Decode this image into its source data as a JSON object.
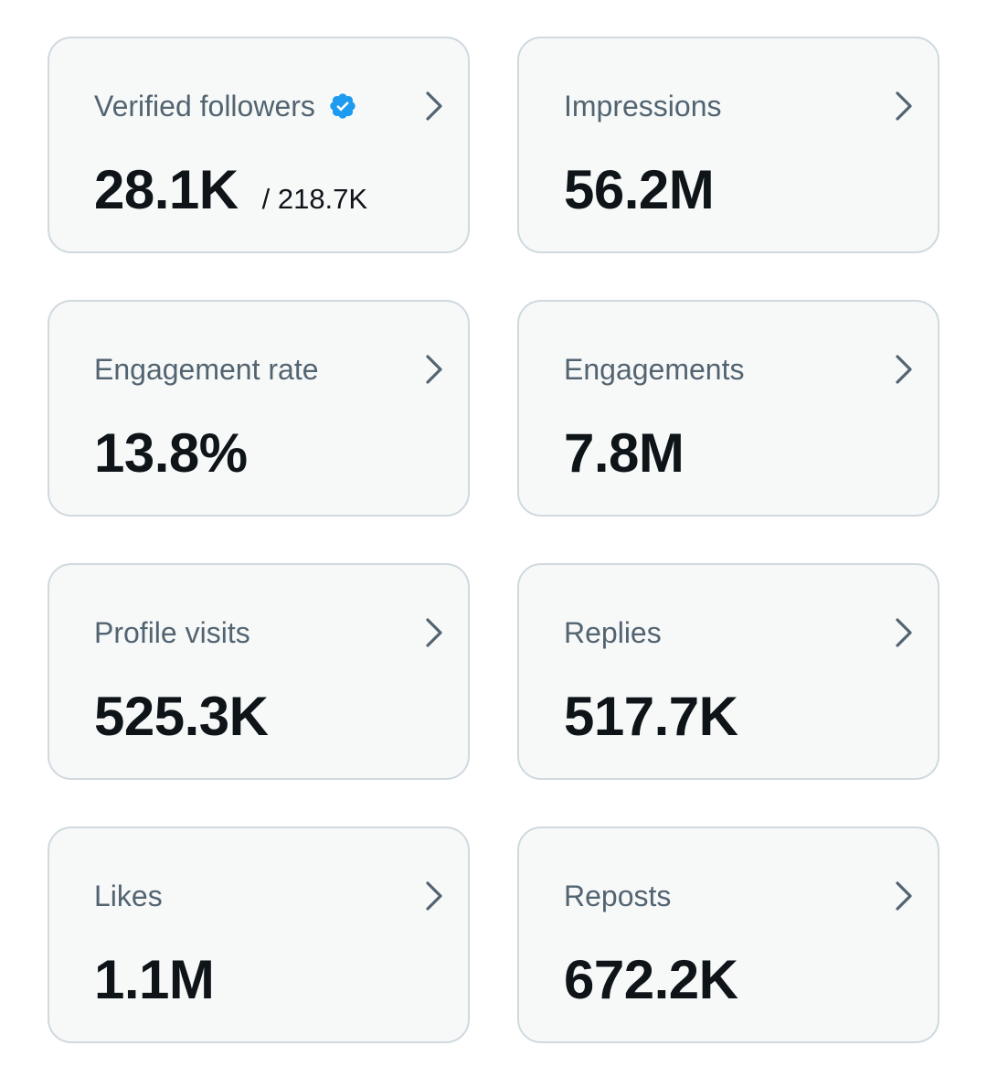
{
  "colors": {
    "card_background": "#f7f9f9",
    "card_border": "#cfd9de",
    "label_text": "#536471",
    "value_text": "#0f1419",
    "chevron": "#536471",
    "verified_badge": "#1d9bf0"
  },
  "cards": [
    {
      "label": "Verified followers",
      "value": "28.1K",
      "sub_value": "/ 218.7K",
      "icon": "verified-badge-icon",
      "chevron_icon": "chevron-right-icon"
    },
    {
      "label": "Impressions",
      "value": "56.2M",
      "chevron_icon": "chevron-right-icon"
    },
    {
      "label": "Engagement rate",
      "value": "13.8%",
      "chevron_icon": "chevron-right-icon"
    },
    {
      "label": "Engagements",
      "value": "7.8M",
      "chevron_icon": "chevron-right-icon"
    },
    {
      "label": "Profile visits",
      "value": "525.3K",
      "chevron_icon": "chevron-right-icon"
    },
    {
      "label": "Replies",
      "value": "517.7K",
      "chevron_icon": "chevron-right-icon"
    },
    {
      "label": "Likes",
      "value": "1.1M",
      "chevron_icon": "chevron-right-icon"
    },
    {
      "label": "Reposts",
      "value": "672.2K",
      "chevron_icon": "chevron-right-icon"
    }
  ]
}
